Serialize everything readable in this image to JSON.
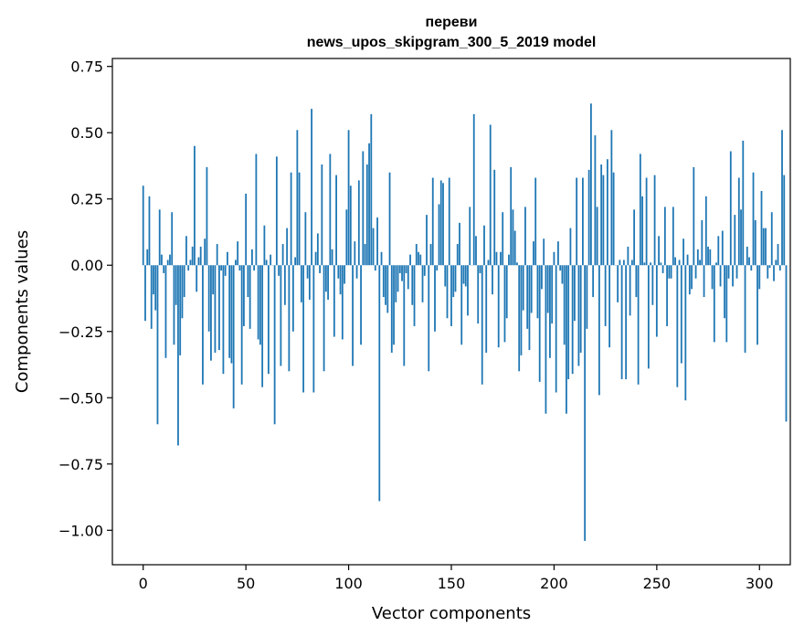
{
  "chart_data": {
    "type": "bar",
    "title_line1": "переви",
    "title_line2": "news_upos_skipgram_300_5_2019 model",
    "xlabel": "Vector components",
    "ylabel": "Components values",
    "xlim": [
      -15,
      315
    ],
    "ylim": [
      -1.13,
      0.78
    ],
    "xticks": [
      0,
      50,
      100,
      150,
      200,
      250,
      300
    ],
    "xtick_labels": [
      "0",
      "50",
      "100",
      "150",
      "200",
      "250",
      "300"
    ],
    "yticks": [
      -1.0,
      -0.75,
      -0.5,
      -0.25,
      0.0,
      0.25,
      0.5,
      0.75
    ],
    "ytick_labels": [
      "−1.00",
      "−0.75",
      "−0.50",
      "−0.25",
      "0.00",
      "0.25",
      "0.50",
      "0.75"
    ],
    "bar_color": "#1f77b4",
    "grid": false,
    "values": [
      0.3,
      -0.21,
      0.06,
      0.26,
      -0.24,
      -0.11,
      -0.17,
      -0.6,
      0.21,
      0.04,
      -0.03,
      -0.35,
      0.02,
      0.04,
      0.2,
      -0.3,
      -0.15,
      -0.68,
      -0.34,
      -0.2,
      -0.12,
      0.11,
      -0.02,
      0.02,
      0.07,
      0.45,
      -0.1,
      0.03,
      0.07,
      -0.45,
      0.1,
      0.37,
      -0.25,
      -0.36,
      -0.11,
      -0.33,
      0.08,
      -0.32,
      -0.02,
      -0.41,
      -0.04,
      0.05,
      -0.35,
      -0.37,
      -0.54,
      0.02,
      0.09,
      -0.02,
      -0.45,
      -0.23,
      0.27,
      -0.12,
      -0.24,
      0.06,
      -0.02,
      0.42,
      -0.28,
      -0.3,
      -0.46,
      0.15,
      0.02,
      -0.41,
      0.04,
      0.0,
      -0.6,
      0.41,
      -0.04,
      -0.38,
      0.08,
      -0.15,
      0.14,
      -0.4,
      0.35,
      -0.25,
      0.03,
      0.51,
      0.35,
      -0.14,
      -0.48,
      0.2,
      -0.05,
      -0.13,
      0.59,
      -0.48,
      0.05,
      0.12,
      -0.03,
      0.38,
      -0.4,
      -0.1,
      -0.13,
      0.42,
      0.06,
      -0.27,
      0.34,
      -0.05,
      -0.11,
      -0.28,
      -0.07,
      0.21,
      0.51,
      0.3,
      -0.38,
      0.09,
      -0.05,
      0.32,
      -0.3,
      0.43,
      0.08,
      0.38,
      0.46,
      0.57,
      0.14,
      -0.02,
      0.18,
      -0.89,
      0.05,
      -0.12,
      -0.15,
      -0.18,
      0.35,
      -0.33,
      -0.3,
      -0.14,
      -0.1,
      -0.03,
      -0.06,
      -0.38,
      -0.03,
      -0.09,
      0.04,
      -0.15,
      -0.23,
      0.08,
      0.05,
      0.04,
      -0.14,
      -0.04,
      0.19,
      -0.4,
      0.08,
      0.33,
      -0.25,
      -0.02,
      0.23,
      0.32,
      0.31,
      -0.08,
      -0.2,
      0.33,
      -0.23,
      -0.12,
      -0.1,
      0.08,
      0.16,
      -0.3,
      -0.07,
      -0.08,
      -0.19,
      0.22,
      0.0,
      0.57,
      0.11,
      -0.22,
      -0.03,
      -0.45,
      0.15,
      -0.33,
      0.02,
      0.53,
      -0.11,
      0.36,
      0.05,
      -0.31,
      0.05,
      0.2,
      -0.29,
      -0.2,
      0.04,
      0.37,
      0.21,
      0.13,
      0.01,
      -0.4,
      -0.34,
      -0.17,
      0.22,
      -0.24,
      -0.32,
      -0.18,
      0.09,
      0.33,
      -0.2,
      -0.44,
      -0.09,
      0.1,
      -0.56,
      -0.18,
      -0.35,
      -0.22,
      0.05,
      -0.48,
      0.09,
      -0.02,
      -0.07,
      -0.3,
      -0.56,
      -0.43,
      0.14,
      -0.41,
      -0.21,
      0.33,
      -0.38,
      -0.33,
      0.33,
      -1.04,
      -0.24,
      0.36,
      0.61,
      -0.12,
      0.49,
      0.22,
      -0.49,
      0.38,
      0.34,
      -0.23,
      0.4,
      -0.31,
      0.51,
      0.35,
      0.0,
      -0.14,
      0.02,
      -0.43,
      0.02,
      -0.43,
      0.07,
      -0.19,
      0.02,
      0.21,
      -0.12,
      -0.45,
      0.42,
      0.26,
      0.01,
      0.33,
      -0.39,
      0.01,
      -0.15,
      0.34,
      -0.27,
      0.11,
      0.01,
      -0.03,
      0.22,
      -0.23,
      -0.05,
      -0.05,
      0.22,
      0.03,
      -0.46,
      0.02,
      -0.37,
      0.1,
      -0.51,
      0.04,
      -0.11,
      -0.09,
      0.37,
      -0.05,
      0.06,
      0.02,
      0.17,
      -0.12,
      0.26,
      0.07,
      0.06,
      -0.09,
      -0.29,
      0.01,
      0.11,
      -0.08,
      0.13,
      -0.2,
      -0.29,
      -0.05,
      0.43,
      -0.08,
      0.19,
      -0.05,
      0.33,
      0.21,
      0.47,
      -0.33,
      0.07,
      0.03,
      -0.02,
      0.35,
      0.17,
      -0.3,
      -0.09,
      0.28,
      0.14,
      0.14,
      -0.05,
      -0.01,
      0.2,
      -0.06,
      0.02,
      0.08,
      -0.02,
      0.51,
      0.34,
      -0.59
    ]
  }
}
